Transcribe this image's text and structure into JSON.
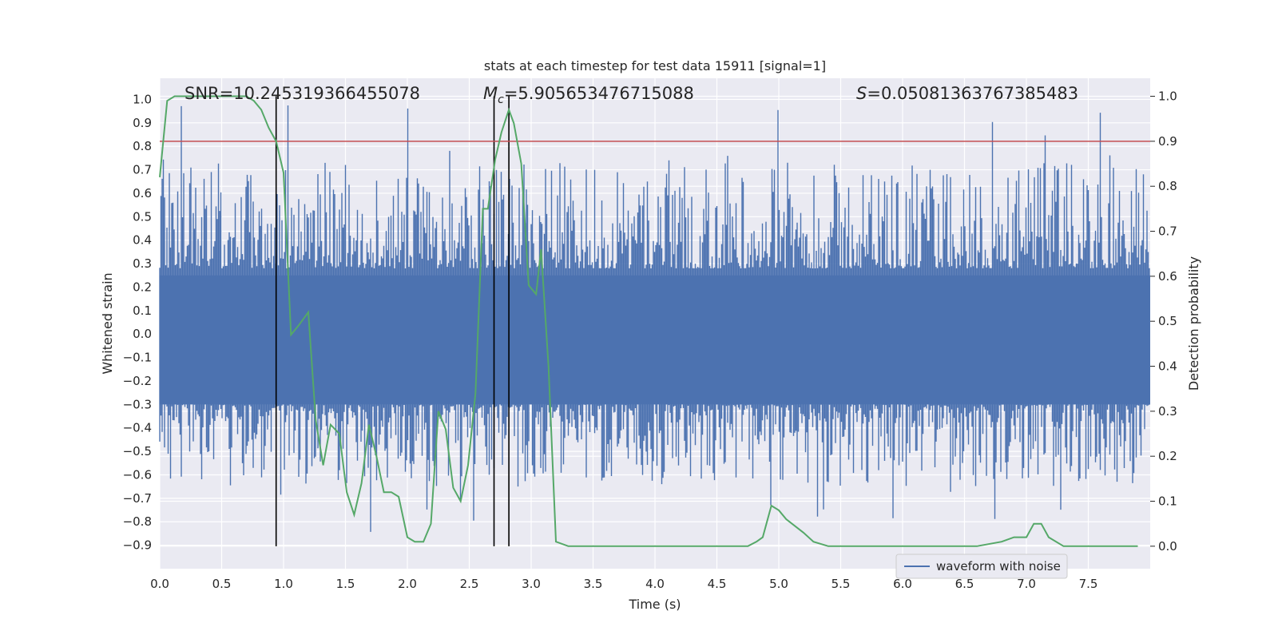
{
  "chart_data": {
    "type": "line",
    "title": "stats at each timestep for test data 15911 [signal=1]",
    "xlabel": "Time (s)",
    "ylabel_left": "Whitened strain",
    "ylabel_right": "Detection probability",
    "xlim": [
      0,
      8
    ],
    "ylim_left": [
      -1.0,
      1.09
    ],
    "ylim_right": [
      -0.05,
      1.04
    ],
    "x_ticks": [
      0.0,
      0.5,
      1.0,
      1.5,
      2.0,
      2.5,
      3.0,
      3.5,
      4.0,
      4.5,
      5.0,
      5.5,
      6.0,
      6.5,
      7.0,
      7.5
    ],
    "x_tick_labels": [
      "0.0",
      "0.5",
      "1.0",
      "1.5",
      "2.0",
      "2.5",
      "3.0",
      "3.5",
      "4.0",
      "4.5",
      "5.0",
      "5.5",
      "6.0",
      "6.5",
      "7.0",
      "7.5"
    ],
    "y_left_ticks": [
      1.0,
      0.9,
      0.8,
      0.7,
      0.6,
      0.5,
      0.4,
      0.3,
      0.2,
      0.1,
      0.0,
      -0.1,
      -0.2,
      -0.3,
      -0.4,
      -0.5,
      -0.6,
      -0.7,
      -0.8,
      -0.9
    ],
    "y_left_tick_labels": [
      "1.0",
      "0.9",
      "0.8",
      "0.7",
      "0.6",
      "0.5",
      "0.4",
      "0.3",
      "0.2",
      "0.1",
      "0.0",
      "−0.1",
      "−0.2",
      "−0.3",
      "−0.4",
      "−0.5",
      "−0.6",
      "−0.7",
      "−0.8",
      "−0.9"
    ],
    "y_right_ticks": [
      1.0,
      0.9,
      0.8,
      0.7,
      0.6,
      0.5,
      0.4,
      0.3,
      0.2,
      0.1,
      0.0
    ],
    "y_right_tick_labels": [
      "1.0",
      "0.9",
      "0.8",
      "0.7",
      "0.6",
      "0.5",
      "0.4",
      "0.3",
      "0.2",
      "0.1",
      "0.0"
    ],
    "annotations": {
      "snr": "SNR=10.245319366455078",
      "mc_symbol": "M",
      "mc_sub": "c",
      "mc_value": "=5.905653476715088",
      "s_symbol": "S",
      "s_value": "=0.050813637673854 83"
    },
    "threshold_right": 0.9,
    "vertical_lines_x": [
      0.94,
      2.7,
      2.82
    ],
    "vertical_lines_yrange_right": [
      0.0,
      1.0
    ],
    "series": [
      {
        "name": "waveform with noise",
        "axis": "left",
        "color": "#4c72b0",
        "kind": "noisy waveform, dense band roughly -0.3 to 0.3 with spikes up to 1.0 and down to -0.87"
      },
      {
        "name": "detection probability",
        "axis": "right",
        "color": "#55a868",
        "x": [
          0.0,
          0.06,
          0.12,
          0.2,
          0.3,
          0.4,
          0.5,
          0.6,
          0.7,
          0.76,
          0.82,
          0.88,
          0.94,
          1.0,
          1.06,
          1.12,
          1.2,
          1.26,
          1.32,
          1.38,
          1.45,
          1.51,
          1.57,
          1.63,
          1.69,
          1.75,
          1.81,
          1.87,
          1.93,
          2.0,
          2.06,
          2.13,
          2.19,
          2.25,
          2.31,
          2.37,
          2.43,
          2.49,
          2.55,
          2.61,
          2.65,
          2.71,
          2.76,
          2.82,
          2.86,
          2.92,
          2.98,
          3.04,
          3.08,
          3.14,
          3.2,
          3.3,
          3.5,
          3.8,
          4.0,
          4.2,
          4.4,
          4.6,
          4.75,
          4.82,
          4.87,
          4.94,
          5.0,
          5.06,
          5.2,
          5.28,
          5.4,
          5.6,
          5.8,
          6.0,
          6.2,
          6.4,
          6.6,
          6.8,
          6.9,
          6.95,
          7.0,
          7.06,
          7.12,
          7.18,
          7.3,
          7.5,
          7.7,
          7.9
        ],
        "y": [
          0.82,
          0.99,
          1.0,
          1.0,
          1.0,
          1.0,
          1.0,
          1.0,
          1.0,
          0.99,
          0.97,
          0.93,
          0.9,
          0.83,
          0.47,
          0.49,
          0.52,
          0.28,
          0.18,
          0.27,
          0.25,
          0.12,
          0.07,
          0.14,
          0.27,
          0.2,
          0.12,
          0.12,
          0.11,
          0.02,
          0.01,
          0.01,
          0.05,
          0.3,
          0.26,
          0.13,
          0.1,
          0.18,
          0.34,
          0.75,
          0.75,
          0.86,
          0.92,
          0.97,
          0.94,
          0.85,
          0.58,
          0.56,
          0.66,
          0.4,
          0.01,
          0.0,
          0.0,
          0.0,
          0.0,
          0.0,
          0.0,
          0.0,
          0.0,
          0.01,
          0.02,
          0.09,
          0.08,
          0.06,
          0.03,
          0.01,
          0.0,
          0.0,
          0.0,
          0.0,
          0.0,
          0.0,
          0.0,
          0.01,
          0.02,
          0.02,
          0.02,
          0.05,
          0.05,
          0.02,
          0.0,
          0.0,
          0.0,
          0.0
        ]
      }
    ],
    "legend": {
      "placement": "lower-right",
      "entries": [
        "waveform with noise"
      ]
    },
    "grid": true
  }
}
